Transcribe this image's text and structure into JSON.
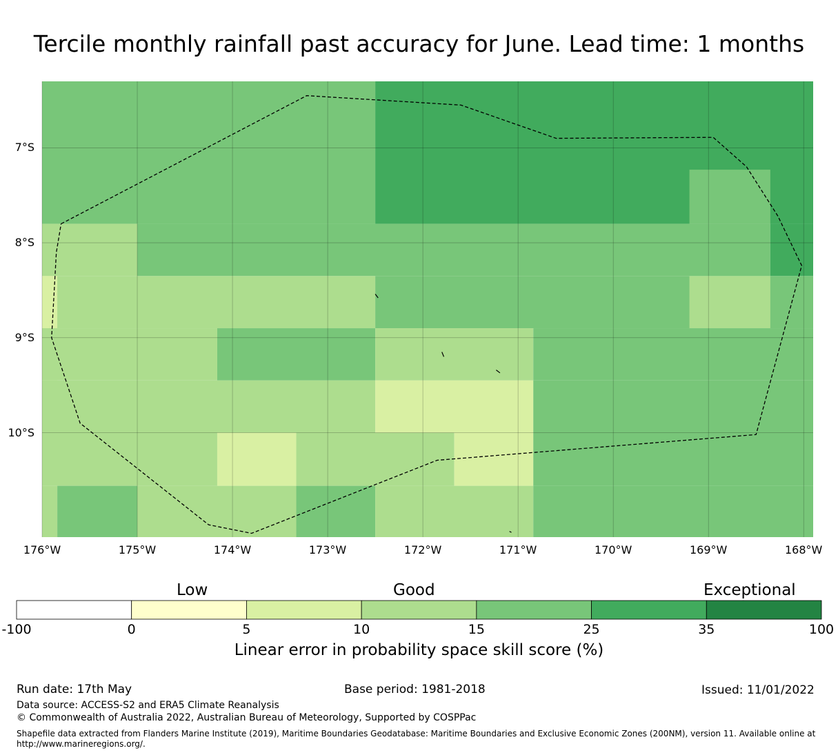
{
  "title": "Tercile monthly rainfall past accuracy for June. Lead time: 1 months",
  "map": {
    "lat_labels": [
      "7°S",
      "8°S",
      "9°S",
      "10°S"
    ],
    "lon_labels": [
      "176°W",
      "175°W",
      "174°W",
      "173°W",
      "172°W",
      "171°W",
      "170°W",
      "169°W",
      "168°W"
    ],
    "extent": {
      "lon": [
        -176,
        -167.9
      ],
      "lat": [
        -11.1,
        -6.3
      ]
    },
    "grid": true,
    "eez_boundary_style": "dashed",
    "cells": [
      {
        "lon0": -176,
        "lon1": -172.5,
        "lat0": -7.8,
        "lat1": -6.3,
        "class": 4
      },
      {
        "lon0": -172.5,
        "lon1": -167.9,
        "lat0": -7.8,
        "lat1": -6.3,
        "class": 5
      },
      {
        "lon0": -169.2,
        "lon1": -168.35,
        "lat0": -7.8,
        "lat1": -7.23,
        "class": 4
      },
      {
        "lon0": -176,
        "lon1": -175,
        "lat0": -8.35,
        "lat1": -7.8,
        "class": 3
      },
      {
        "lon0": -175,
        "lon1": -168.35,
        "lat0": -8.35,
        "lat1": -7.8,
        "class": 4
      },
      {
        "lon0": -168.35,
        "lon1": -167.9,
        "lat0": -8.35,
        "lat1": -7.8,
        "class": 5
      },
      {
        "lon0": -176,
        "lon1": -172.5,
        "lat0": -8.9,
        "lat1": -8.35,
        "class": 3
      },
      {
        "lon0": -176,
        "lon1": -175.84,
        "lat0": -9.45,
        "lat1": -8.35,
        "class": 2
      },
      {
        "lon0": -172.5,
        "lon1": -167.9,
        "lat0": -8.9,
        "lat1": -8.35,
        "class": 4
      },
      {
        "lon0": -169.2,
        "lon1": -168.35,
        "lat0": -8.9,
        "lat1": -8.35,
        "class": 3
      },
      {
        "lon0": -176,
        "lon1": -174.16,
        "lat0": -9.45,
        "lat1": -8.9,
        "class": 3
      },
      {
        "lon0": -174.16,
        "lon1": -172.5,
        "lat0": -9.45,
        "lat1": -8.9,
        "class": 4
      },
      {
        "lon0": -172.5,
        "lon1": -170.84,
        "lat0": -9.45,
        "lat1": -8.9,
        "class": 3
      },
      {
        "lon0": -170.84,
        "lon1": -167.9,
        "lat0": -9.45,
        "lat1": -8.9,
        "class": 4
      },
      {
        "lon0": -176,
        "lon1": -172.5,
        "lat0": -10.0,
        "lat1": -9.45,
        "class": 3
      },
      {
        "lon0": -172.5,
        "lon1": -170.84,
        "lat0": -10.0,
        "lat1": -9.45,
        "class": 2
      },
      {
        "lon0": -170.84,
        "lon1": -167.9,
        "lat0": -10.0,
        "lat1": -9.45,
        "class": 4
      },
      {
        "lon0": -176,
        "lon1": -174.16,
        "lat0": -10.56,
        "lat1": -10.0,
        "class": 3
      },
      {
        "lon0": -174.16,
        "lon1": -173.33,
        "lat0": -10.56,
        "lat1": -10.0,
        "class": 2
      },
      {
        "lon0": -173.33,
        "lon1": -171.67,
        "lat0": -10.56,
        "lat1": -10.0,
        "class": 3
      },
      {
        "lon0": -171.67,
        "lon1": -170.84,
        "lat0": -10.56,
        "lat1": -10.0,
        "class": 2
      },
      {
        "lon0": -170.84,
        "lon1": -167.9,
        "lat0": -10.56,
        "lat1": -10.0,
        "class": 4
      },
      {
        "lon0": -176,
        "lon1": -175.84,
        "lat0": -11.1,
        "lat1": -10.56,
        "class": 3
      },
      {
        "lon0": -175.84,
        "lon1": -175,
        "lat0": -11.1,
        "lat1": -10.56,
        "class": 4
      },
      {
        "lon0": -175,
        "lon1": -173.33,
        "lat0": -11.1,
        "lat1": -10.56,
        "class": 3
      },
      {
        "lon0": -173.33,
        "lon1": -172.5,
        "lat0": -11.1,
        "lat1": -10.56,
        "class": 4
      },
      {
        "lon0": -172.5,
        "lon1": -170.84,
        "lat0": -11.1,
        "lat1": -10.56,
        "class": 3
      },
      {
        "lon0": -170.84,
        "lon1": -167.9,
        "lat0": -11.1,
        "lat1": -10.56,
        "class": 4
      }
    ],
    "eez_boundary": [
      [
        -175.8,
        -7.8
      ],
      [
        -173.22,
        -6.45
      ],
      [
        -171.6,
        -6.55
      ],
      [
        -170.6,
        -6.9
      ],
      [
        -168.95,
        -6.89
      ],
      [
        -168.6,
        -7.2
      ],
      [
        -168.27,
        -7.72
      ],
      [
        -168.02,
        -8.24
      ],
      [
        -168.5,
        -10.02
      ],
      [
        -171.85,
        -10.29
      ],
      [
        -173.8,
        -11.06
      ],
      [
        -174.25,
        -10.97
      ],
      [
        -175.6,
        -9.9
      ],
      [
        -175.9,
        -9.0
      ],
      [
        -175.85,
        -8.1
      ],
      [
        -175.8,
        -7.8
      ]
    ],
    "islands": [
      [
        [
          -172.5,
          -8.54
        ],
        [
          -172.47,
          -8.58
        ]
      ],
      [
        [
          -171.8,
          -9.15
        ],
        [
          -171.78,
          -9.2
        ]
      ],
      [
        [
          -171.23,
          -9.34
        ],
        [
          -171.19,
          -9.37
        ]
      ],
      [
        [
          -171.09,
          -11.04
        ],
        [
          -171.07,
          -11.05
        ]
      ]
    ]
  },
  "colorbar": {
    "category_labels": [
      "Low",
      "Good",
      "Exceptional"
    ],
    "ticks": [
      "-100",
      "0",
      "5",
      "10",
      "15",
      "25",
      "35",
      "100"
    ],
    "colors": [
      "#ffffff",
      "#ffffcc",
      "#d9f0a3",
      "#addd8e",
      "#78c679",
      "#41ab5d",
      "#238443"
    ],
    "axis_label": "Linear error in probability space skill score (%)"
  },
  "footer": {
    "run_date": "Run date: 17th May",
    "base_period": "Base period: 1981-2018",
    "issued": "Issued: 11/01/2022",
    "data_source": "Data source: ACCESS-S2 and ERA5 Climate Reanalysis",
    "copyright": "© Commonwealth of Australia 2022, Australian Bureau of Meteorology, Supported by COSPPac",
    "shapefile_note": "Shapefile data extracted from Flanders Marine Institute (2019), Maritime Boundaries Geodatabase: Maritime Boundaries and Exclusive Economic Zones (200NM), version 11. Available online at http://www.marineregions.org/."
  }
}
